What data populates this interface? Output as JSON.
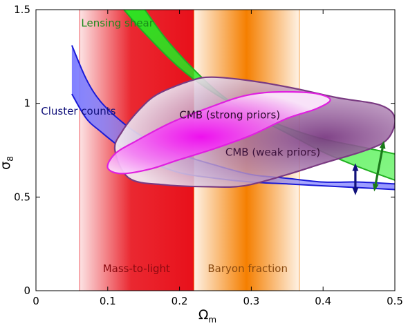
{
  "chart_data": {
    "type": "area",
    "title": "",
    "xlabel": "Ω",
    "xlabel_sub": "m",
    "ylabel": "σ",
    "ylabel_sub": "8",
    "xlim": [
      0,
      0.5
    ],
    "ylim": [
      0,
      1.5
    ],
    "x_ticks": [
      "0",
      "0.1",
      "0.2",
      "0.3",
      "0.4",
      "0.5"
    ],
    "y_ticks": [
      "0",
      "0.5",
      "1",
      "1.5"
    ],
    "x_tick_values": [
      0,
      0.1,
      0.2,
      0.3,
      0.4,
      0.5
    ],
    "y_tick_values": [
      0,
      0.5,
      1,
      1.5
    ],
    "grid": false,
    "bands": [
      {
        "name": "Mass-to-light",
        "x_range": [
          0.061,
          0.22
        ],
        "color": "#e8101a"
      },
      {
        "name": "Baryon fraction",
        "x_range": [
          0.22,
          0.367
        ],
        "color": "#f57f00"
      }
    ],
    "regions": [
      {
        "name": "Lensing shear",
        "color": "#22ee22",
        "edge_color": "#22b022",
        "label_color": "#1a8a1a",
        "upper": [
          [
            0.118,
            1.52
          ],
          [
            0.15,
            1.38
          ],
          [
            0.2,
            1.19
          ],
          [
            0.25,
            1.05
          ],
          [
            0.3,
            0.95
          ],
          [
            0.35,
            0.87
          ],
          [
            0.4,
            0.81
          ],
          [
            0.45,
            0.77
          ],
          [
            0.5,
            0.73
          ]
        ],
        "lower": [
          [
            0.148,
            1.52
          ],
          [
            0.18,
            1.35
          ],
          [
            0.22,
            1.18
          ],
          [
            0.26,
            1.04
          ],
          [
            0.3,
            0.94
          ],
          [
            0.35,
            0.84
          ],
          [
            0.4,
            0.74
          ],
          [
            0.45,
            0.66
          ],
          [
            0.5,
            0.59
          ]
        ]
      },
      {
        "name": "Cluster counts",
        "color": "#6b6bff",
        "edge_color": "#1a1ad6",
        "label_color": "#10107a",
        "upper": [
          [
            0.05,
            1.31
          ],
          [
            0.07,
            1.13
          ],
          [
            0.09,
            1.01
          ],
          [
            0.12,
            0.9
          ],
          [
            0.15,
            0.82
          ],
          [
            0.2,
            0.73
          ],
          [
            0.25,
            0.67
          ],
          [
            0.3,
            0.62
          ],
          [
            0.35,
            0.6
          ],
          [
            0.4,
            0.58
          ],
          [
            0.45,
            0.58
          ],
          [
            0.5,
            0.57
          ]
        ],
        "lower": [
          [
            0.05,
            1.05
          ],
          [
            0.07,
            0.92
          ],
          [
            0.09,
            0.85
          ],
          [
            0.12,
            0.76
          ],
          [
            0.15,
            0.7
          ],
          [
            0.2,
            0.63
          ],
          [
            0.25,
            0.6
          ],
          [
            0.3,
            0.58
          ],
          [
            0.35,
            0.57
          ],
          [
            0.4,
            0.56
          ],
          [
            0.45,
            0.55
          ],
          [
            0.5,
            0.54
          ]
        ]
      }
    ],
    "contours": [
      {
        "name": "CMB (weak priors)",
        "fill": "#8a4a8a",
        "edge_color": "#7a3a82",
        "label_color": "#3a103a",
        "center": [
          0.375,
          0.8
        ],
        "outline": [
          [
            0.11,
            0.75
          ],
          [
            0.12,
            0.85
          ],
          [
            0.145,
            0.97
          ],
          [
            0.17,
            1.05
          ],
          [
            0.215,
            1.12
          ],
          [
            0.245,
            1.14
          ],
          [
            0.3,
            1.12
          ],
          [
            0.36,
            1.08
          ],
          [
            0.42,
            1.03
          ],
          [
            0.48,
            0.99
          ],
          [
            0.5,
            0.92
          ],
          [
            0.49,
            0.81
          ],
          [
            0.46,
            0.75
          ],
          [
            0.4,
            0.68
          ],
          [
            0.35,
            0.62
          ],
          [
            0.29,
            0.56
          ],
          [
            0.24,
            0.555
          ],
          [
            0.18,
            0.565
          ],
          [
            0.13,
            0.6
          ]
        ]
      },
      {
        "name": "CMB (strong priors)",
        "fill": "#ee30ee",
        "edge_color": "#e020e0",
        "label_color": "#2a0a2a",
        "center": [
          0.225,
          0.87
        ],
        "outline": [
          [
            0.1,
            0.655
          ],
          [
            0.11,
            0.73
          ],
          [
            0.14,
            0.8
          ],
          [
            0.19,
            0.9
          ],
          [
            0.25,
            0.99
          ],
          [
            0.29,
            1.04
          ],
          [
            0.33,
            1.06
          ],
          [
            0.385,
            1.055
          ],
          [
            0.41,
            1.02
          ],
          [
            0.39,
            0.97
          ],
          [
            0.35,
            0.92
          ],
          [
            0.3,
            0.83
          ],
          [
            0.25,
            0.76
          ],
          [
            0.2,
            0.7
          ],
          [
            0.16,
            0.65
          ],
          [
            0.12,
            0.625
          ]
        ]
      }
    ],
    "arrows": [
      {
        "name": "blue-arrow",
        "x": 0.445,
        "y_range": [
          0.53,
          0.66
        ],
        "color": "#10107a"
      },
      {
        "name": "green-arrow",
        "x": 0.478,
        "y_range": [
          0.55,
          0.78
        ],
        "color": "#1a7a1a"
      }
    ]
  }
}
